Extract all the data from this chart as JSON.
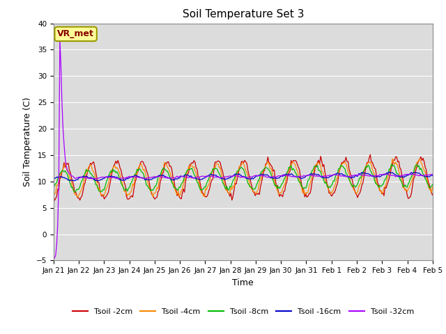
{
  "title": "Soil Temperature Set 3",
  "xlabel": "Time",
  "ylabel": "Soil Temperature (C)",
  "ylim": [
    -5,
    40
  ],
  "yticks": [
    -5,
    0,
    5,
    10,
    15,
    20,
    25,
    30,
    35,
    40
  ],
  "bg_color": "#dcdcdc",
  "series_colors": {
    "Tsoil -2cm": "#cc0000",
    "Tsoil -4cm": "#ff8800",
    "Tsoil -8cm": "#00bb00",
    "Tsoil -16cm": "#0000cc",
    "Tsoil -32cm": "#aa00ff"
  },
  "annotation_text": "VR_met",
  "annotation_color": "#880000",
  "annotation_bg": "#ffff99",
  "annotation_border": "#999900",
  "tick_labels": [
    "Jan 21",
    "Jan 22",
    "Jan 23",
    "Jan 24",
    "Jan 25",
    "Jan 26",
    "Jan 27",
    "Jan 28",
    "Jan 29",
    "Jan 30",
    "Jan 31",
    "Feb 1",
    "Feb 2",
    "Feb 3",
    "Feb 4",
    "Feb 5"
  ],
  "n_days": 16,
  "hours_per_day": 24,
  "figsize": [
    6.4,
    4.8
  ],
  "dpi": 100
}
